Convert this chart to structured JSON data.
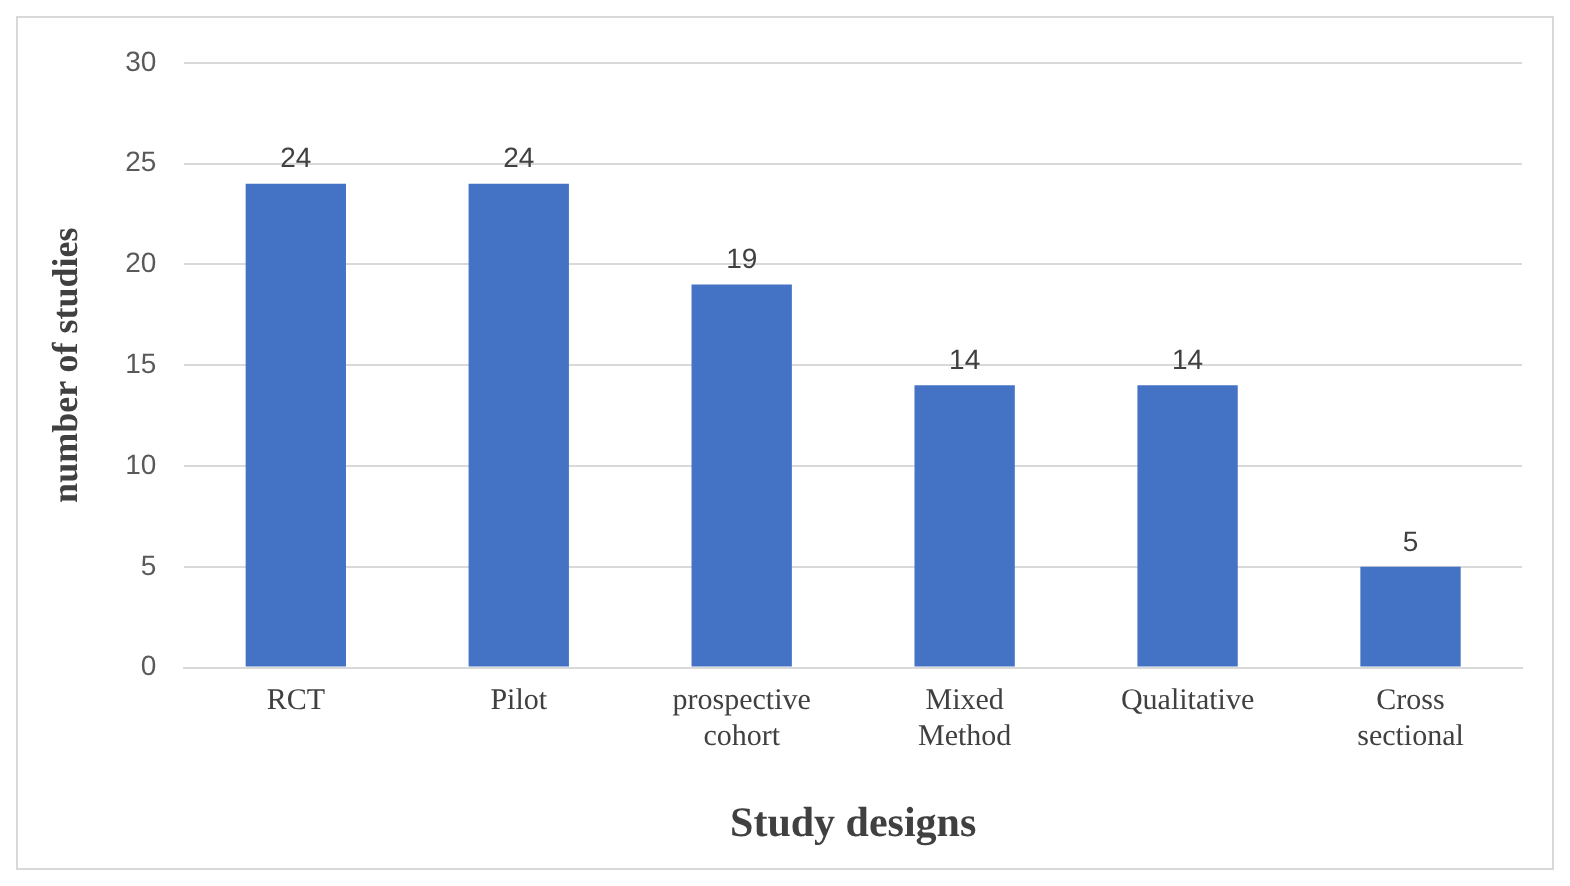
{
  "chart_data": {
    "type": "bar",
    "xlabel": "Study designs",
    "ylabel": "number of studies",
    "categories": [
      "RCT",
      "Pilot",
      "prospective cohort",
      "Mixed Method",
      "Qualitative",
      "Cross sectional"
    ],
    "values": [
      24,
      24,
      19,
      14,
      14,
      5
    ],
    "color": "#4472c4",
    "ylim": [
      0,
      30
    ],
    "yticks": [
      0,
      5,
      10,
      15,
      20,
      25,
      30
    ],
    "grid": "y",
    "data_labels": true
  }
}
